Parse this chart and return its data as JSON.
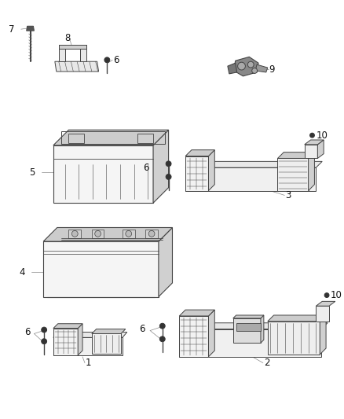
{
  "bg_color": "#ffffff",
  "fig_width": 4.38,
  "fig_height": 5.33,
  "dpi": 100,
  "lc": "#444444",
  "fc_light": "#e8e8e8",
  "fc_mid": "#d0d0d0",
  "fc_dark": "#b0b0b0",
  "fc_top": "#cccccc",
  "label_color": "#111111",
  "label_fs": 8.5
}
